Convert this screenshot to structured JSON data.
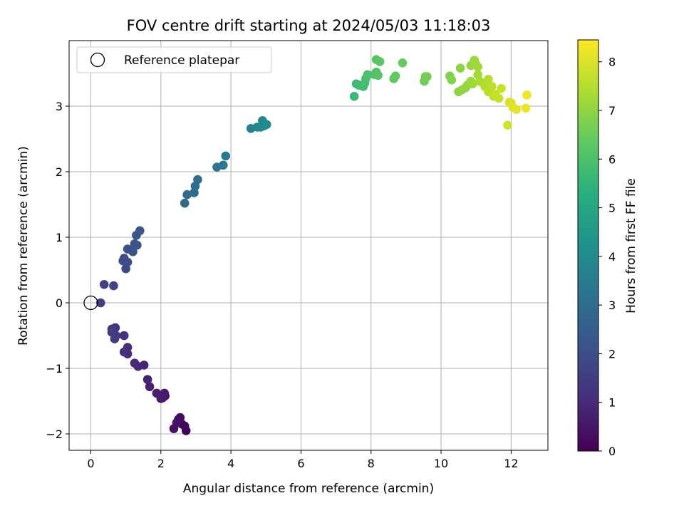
{
  "chart_data": {
    "type": "scatter",
    "title": "FOV centre drift starting at 2024/05/03 11:18:03",
    "xlabel": "Angular distance from reference (arcmin)",
    "ylabel": "Rotation from reference (arcmin)",
    "xlim": [
      -0.62,
      13.05
    ],
    "ylim": [
      -2.25,
      4.0
    ],
    "xticks": [
      0,
      2,
      4,
      6,
      8,
      10,
      12
    ],
    "xtick_labels": [
      "0",
      "2",
      "4",
      "6",
      "8",
      "10",
      "12"
    ],
    "yticks": [
      -2,
      -1,
      0,
      1,
      2,
      3
    ],
    "ytick_labels": [
      "−2",
      "−1",
      "0",
      "1",
      "2",
      "3"
    ],
    "grid": true,
    "legend": {
      "position": "top-left",
      "entries": [
        "Reference platepar"
      ]
    },
    "colorbar": {
      "label": "Hours from first FF file",
      "min": 0,
      "max": 8.45,
      "ticks": [
        0,
        1,
        2,
        3,
        4,
        5,
        6,
        7,
        8
      ],
      "tick_labels": [
        "0",
        "1",
        "2",
        "3",
        "4",
        "5",
        "6",
        "7",
        "8"
      ],
      "colormap": "viridis"
    },
    "reference_point": {
      "x": 0,
      "y": 0
    },
    "points": [
      [
        2.72,
        -1.95,
        0.1
      ],
      [
        2.68,
        -1.88,
        0.15
      ],
      [
        2.6,
        -1.85,
        0.2
      ],
      [
        2.5,
        -1.78,
        0.25
      ],
      [
        2.55,
        -1.75,
        0.3
      ],
      [
        2.37,
        -1.92,
        0.35
      ],
      [
        2.45,
        -1.83,
        0.4
      ],
      [
        2.05,
        -1.45,
        0.5
      ],
      [
        2.12,
        -1.42,
        0.55
      ],
      [
        2.1,
        -1.38,
        0.6
      ],
      [
        2.0,
        -1.46,
        0.65
      ],
      [
        1.88,
        -1.38,
        0.7
      ],
      [
        1.68,
        -1.28,
        0.75
      ],
      [
        1.62,
        -1.17,
        0.8
      ],
      [
        1.52,
        -0.95,
        0.9
      ],
      [
        1.35,
        -0.97,
        0.95
      ],
      [
        1.25,
        -0.92,
        1.0
      ],
      [
        1.05,
        -0.68,
        1.05
      ],
      [
        1.05,
        -0.78,
        1.1
      ],
      [
        0.95,
        -0.75,
        1.15
      ],
      [
        0.95,
        -0.5,
        1.2
      ],
      [
        0.7,
        -0.38,
        1.25
      ],
      [
        0.6,
        -0.4,
        1.3
      ],
      [
        0.65,
        -0.45,
        1.35
      ],
      [
        0.72,
        -0.5,
        1.4
      ],
      [
        0.68,
        -0.55,
        1.45
      ],
      [
        0.6,
        -0.45,
        1.5
      ],
      [
        0.28,
        0.0,
        1.6
      ],
      [
        0.38,
        0.28,
        1.7
      ],
      [
        0.65,
        0.26,
        1.75
      ],
      [
        1.0,
        0.52,
        1.85
      ],
      [
        0.95,
        0.68,
        1.9
      ],
      [
        0.92,
        0.64,
        1.95
      ],
      [
        1.05,
        0.62,
        2.0
      ],
      [
        1.05,
        0.82,
        2.05
      ],
      [
        1.2,
        0.78,
        2.1
      ],
      [
        1.25,
        0.9,
        2.15
      ],
      [
        1.32,
        0.88,
        2.2
      ],
      [
        1.3,
        1.03,
        2.25
      ],
      [
        1.4,
        1.1,
        2.3
      ],
      [
        2.68,
        1.52,
        2.85
      ],
      [
        2.75,
        1.65,
        2.9
      ],
      [
        2.95,
        1.68,
        2.95
      ],
      [
        2.98,
        1.78,
        3.0
      ],
      [
        3.05,
        1.88,
        3.05
      ],
      [
        3.6,
        2.07,
        3.3
      ],
      [
        3.78,
        2.1,
        3.35
      ],
      [
        3.85,
        2.24,
        3.4
      ],
      [
        4.57,
        2.66,
        3.8
      ],
      [
        4.75,
        2.68,
        3.85
      ],
      [
        4.85,
        2.68,
        3.9
      ],
      [
        4.9,
        2.78,
        3.95
      ],
      [
        4.95,
        2.7,
        4.0
      ],
      [
        5.02,
        2.72,
        4.05
      ],
      [
        7.52,
        3.15,
        5.7
      ],
      [
        7.58,
        3.34,
        5.75
      ],
      [
        7.65,
        3.32,
        5.8
      ],
      [
        7.78,
        3.3,
        5.85
      ],
      [
        7.82,
        3.35,
        5.9
      ],
      [
        7.85,
        3.42,
        5.95
      ],
      [
        7.9,
        3.48,
        6.0
      ],
      [
        8.1,
        3.48,
        6.05
      ],
      [
        8.15,
        3.52,
        6.1
      ],
      [
        8.2,
        3.47,
        6.15
      ],
      [
        8.15,
        3.71,
        6.2
      ],
      [
        8.25,
        3.68,
        6.25
      ],
      [
        8.65,
        3.42,
        6.3
      ],
      [
        8.7,
        3.46,
        6.35
      ],
      [
        8.9,
        3.66,
        6.4
      ],
      [
        9.52,
        3.38,
        6.55
      ],
      [
        9.55,
        3.45,
        6.6
      ],
      [
        9.6,
        3.45,
        6.65
      ],
      [
        10.25,
        3.46,
        6.8
      ],
      [
        10.3,
        3.4,
        6.85
      ],
      [
        10.5,
        3.22,
        6.95
      ],
      [
        10.6,
        3.25,
        7.0
      ],
      [
        10.7,
        3.28,
        7.05
      ],
      [
        10.75,
        3.32,
        7.1
      ],
      [
        10.85,
        3.38,
        7.15
      ],
      [
        10.9,
        3.34,
        7.2
      ],
      [
        10.55,
        3.58,
        7.0
      ],
      [
        10.85,
        3.62,
        7.1
      ],
      [
        10.95,
        3.7,
        7.15
      ],
      [
        10.98,
        3.65,
        7.2
      ],
      [
        11.05,
        3.6,
        7.25
      ],
      [
        11.05,
        3.48,
        7.3
      ],
      [
        11.1,
        3.38,
        7.35
      ],
      [
        11.2,
        3.35,
        7.4
      ],
      [
        11.25,
        3.3,
        7.45
      ],
      [
        11.35,
        3.41,
        7.5
      ],
      [
        11.35,
        3.22,
        7.55
      ],
      [
        11.45,
        3.3,
        7.6
      ],
      [
        11.5,
        3.15,
        7.65
      ],
      [
        11.55,
        3.18,
        7.7
      ],
      [
        11.65,
        3.12,
        7.75
      ],
      [
        11.72,
        3.27,
        7.8
      ],
      [
        11.9,
        2.71,
        7.9
      ],
      [
        11.95,
        3.06,
        7.95
      ],
      [
        12.0,
        3.05,
        8.0
      ],
      [
        12.05,
        2.98,
        8.05
      ],
      [
        12.15,
        2.95,
        8.1
      ],
      [
        12.42,
        2.97,
        8.2
      ],
      [
        12.45,
        3.17,
        8.3
      ]
    ]
  }
}
